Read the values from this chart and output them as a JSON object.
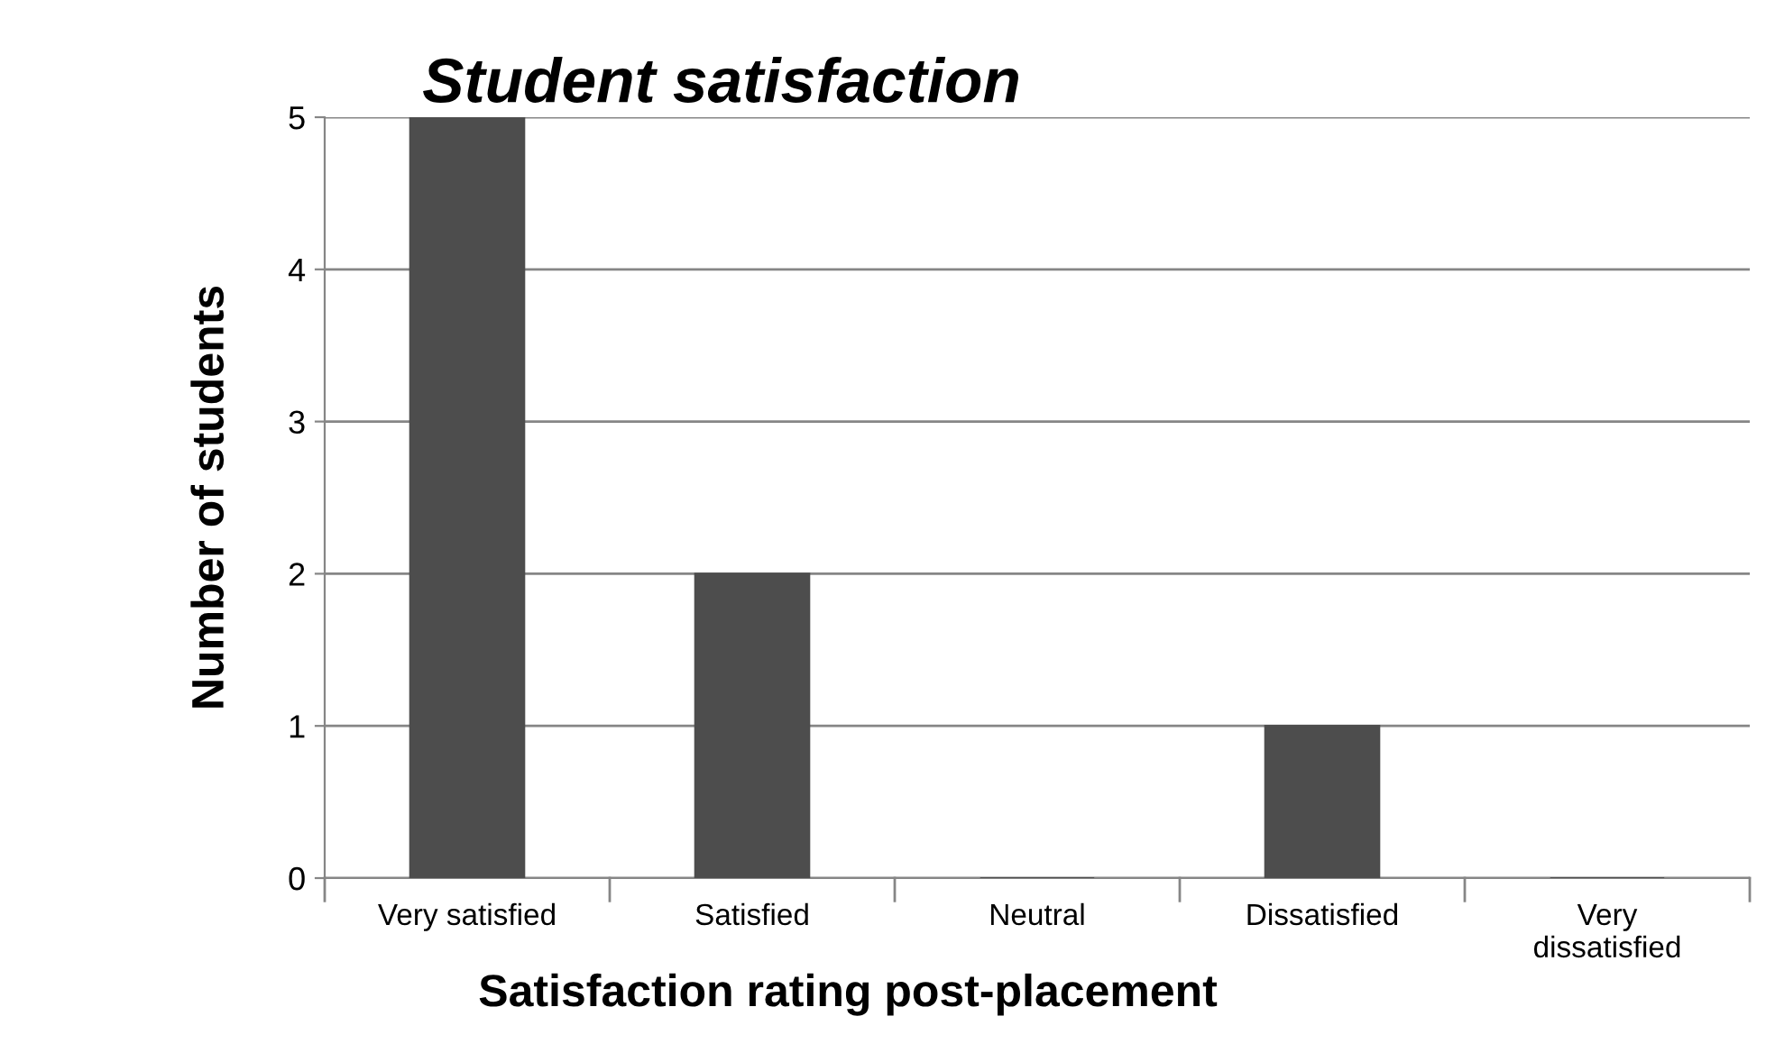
{
  "chart_data": {
    "type": "bar",
    "title": "Student satisfaction",
    "xlabel": "Satisfaction rating post-placement",
    "ylabel": "Number of students",
    "categories": [
      "Very satisfied",
      "Satisfied",
      "Neutral",
      "Dissatisfied",
      "Very\ndissatisfied"
    ],
    "values": [
      5,
      2,
      0,
      1,
      0
    ],
    "color": "#4d4d4d",
    "ylim": [
      0,
      5
    ],
    "yticks": [
      0,
      1,
      2,
      3,
      4,
      5
    ],
    "grid": "y",
    "legend": false
  }
}
